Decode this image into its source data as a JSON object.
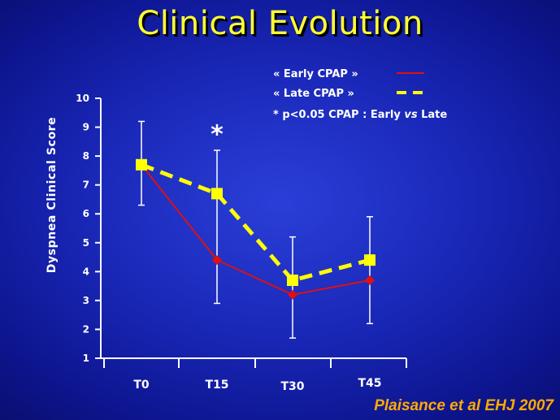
{
  "slide": {
    "title": "Clinical Evolution",
    "citation": "Plaisance et al EHJ 2007"
  },
  "chart_data": {
    "type": "line",
    "title": "",
    "xlabel": "",
    "ylabel": "Dyspnea Clinical Score",
    "categories": [
      "T0",
      "T15",
      "T30",
      "T45"
    ],
    "ylim": [
      1,
      10
    ],
    "yticks": [
      "1",
      "2",
      "3",
      "4",
      "5",
      "6",
      "7",
      "8",
      "9",
      "10"
    ],
    "grid": false,
    "legend_position": "top-right",
    "series": [
      {
        "name": "« Early CPAP »",
        "values": [
          7.7,
          4.4,
          3.2,
          3.7
        ],
        "color": "#e01010",
        "line_style": "solid",
        "marker": "diamond"
      },
      {
        "name": "« Late CPAP »",
        "values": [
          7.7,
          6.7,
          3.7,
          4.4
        ],
        "color": "#ffff00",
        "line_style": "dashed",
        "marker": "square",
        "error_high": [
          9.2,
          8.2,
          5.2,
          5.9
        ],
        "error_low": [
          6.3,
          2.9,
          1.7,
          2.2
        ]
      }
    ],
    "annotations": [
      {
        "text": "*",
        "category": "T15",
        "y": 8.8
      }
    ],
    "legend_note": {
      "star": "*",
      "text_1": "p<0.05  CPAP : Early ",
      "text_vs": "vs",
      "text_2": " Late"
    }
  },
  "colors": {
    "title": "#ffff33",
    "citation": "#ffaa00",
    "axis": "#ffffff"
  }
}
